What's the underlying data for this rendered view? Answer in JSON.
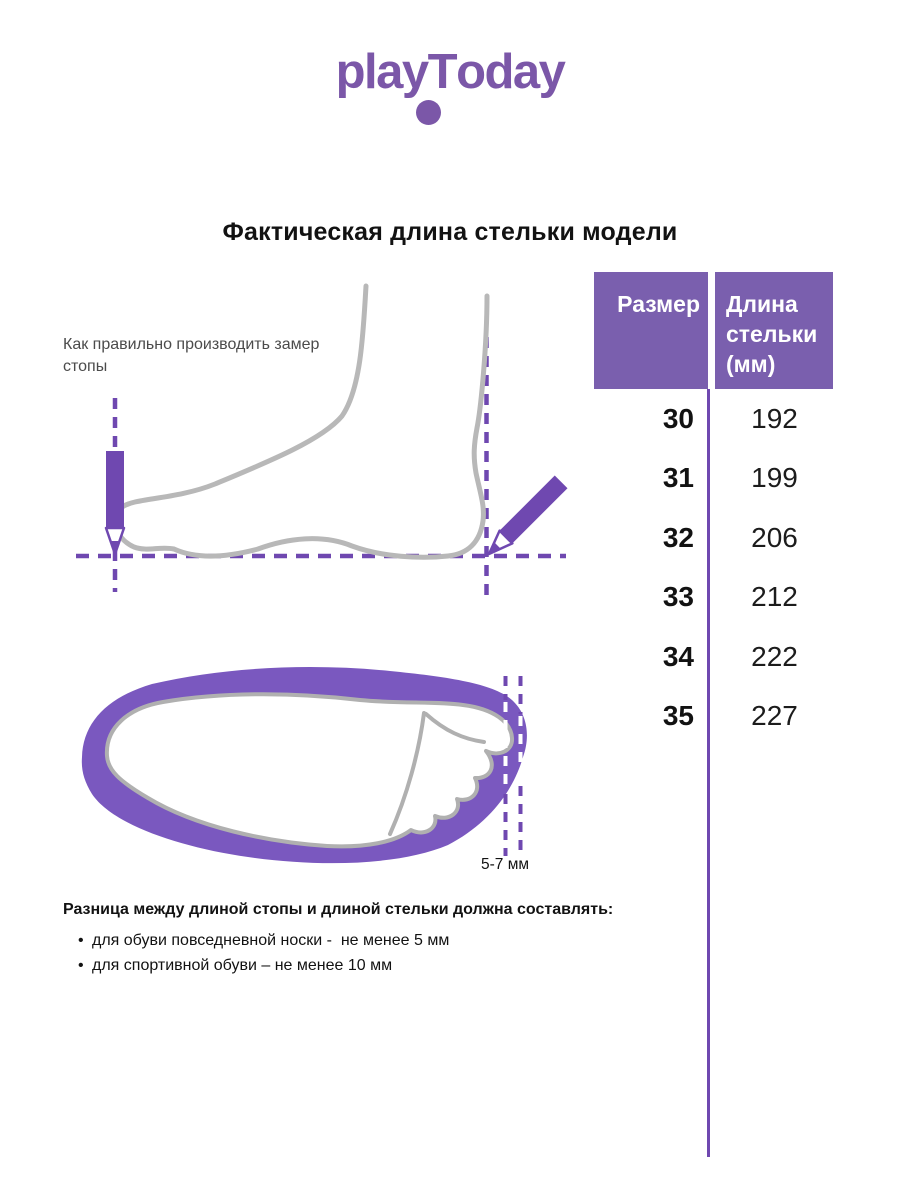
{
  "logo": {
    "play": "play",
    "t": "T",
    "oday": "oday"
  },
  "title": {
    "text": "Фактическая длина стельки модели"
  },
  "measure_note": {
    "text": "Как правильно производить замер стопы"
  },
  "table": {
    "col1_header": "Размер",
    "col2_header": "Длина стельки (мм)",
    "rows": [
      {
        "size": "30",
        "length": "192"
      },
      {
        "size": "31",
        "length": "199"
      },
      {
        "size": "32",
        "length": "206"
      },
      {
        "size": "33",
        "length": "212"
      },
      {
        "size": "34",
        "length": "222"
      },
      {
        "size": "35",
        "length": "227"
      }
    ]
  },
  "footprint": {
    "gap_label": "5-7 мм"
  },
  "notes": {
    "heading": "Разница между длиной стопы и длиной стельки должна составлять:",
    "bullet_marker": "•",
    "bullets": [
      "для обуви повседневной носки -  не менее 5 мм",
      "для спортивной обуви – не менее 10 мм"
    ]
  },
  "colors": {
    "brand_purple": "#7b57a8",
    "header_bg_purple": "#7a5fae",
    "line_purple": "#6f48b0",
    "insole_purple": "#7a58bf",
    "foot_outline_gray": "#b8b8b8",
    "footprint_gray": "#b0b0b0",
    "text_ink": "#121212",
    "note_gray": "#4b4b4b"
  }
}
